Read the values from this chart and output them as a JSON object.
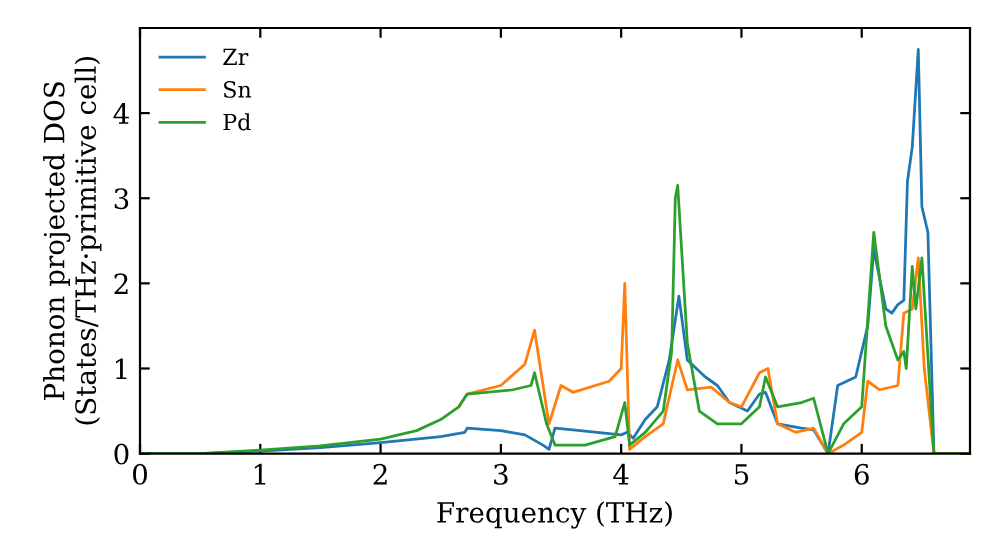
{
  "chart_data": {
    "type": "line",
    "xlabel": "Frequency (THz)",
    "ylabel": "Phonon projected DOS\n(States/THz·primitive cell)",
    "xlim": [
      0,
      6.9
    ],
    "ylim": [
      0,
      5
    ],
    "xticks": [
      0,
      1,
      2,
      3,
      4,
      5,
      6
    ],
    "yticks": [
      0,
      1,
      2,
      3,
      4
    ],
    "grid": false,
    "legend": "top left",
    "marker": "none",
    "line_style": "solid",
    "series": [
      {
        "name": "Zr",
        "color": "#1f77b4",
        "x": [
          0,
          0.5,
          1.0,
          1.5,
          2.0,
          2.5,
          2.7,
          2.72,
          3.0,
          3.2,
          3.35,
          3.4,
          3.45,
          3.6,
          4.0,
          4.05,
          4.1,
          4.2,
          4.3,
          4.4,
          4.48,
          4.55,
          4.7,
          4.8,
          4.9,
          5.05,
          5.15,
          5.2,
          5.3,
          5.5,
          5.6,
          5.72,
          5.8,
          5.95,
          6.05,
          6.1,
          6.2,
          6.25,
          6.3,
          6.35,
          6.38,
          6.42,
          6.47,
          6.5,
          6.55,
          6.6,
          6.9
        ],
        "values": [
          0,
          0,
          0.03,
          0.07,
          0.13,
          0.2,
          0.25,
          0.3,
          0.27,
          0.22,
          0.1,
          0.05,
          0.3,
          0.28,
          0.22,
          0.25,
          0.18,
          0.4,
          0.55,
          1.1,
          1.85,
          1.1,
          0.9,
          0.8,
          0.6,
          0.5,
          0.7,
          0.72,
          0.35,
          0.3,
          0.28,
          0,
          0.8,
          0.9,
          1.5,
          2.4,
          1.7,
          1.65,
          1.75,
          1.8,
          3.2,
          3.6,
          4.75,
          2.9,
          2.6,
          0,
          0
        ]
      },
      {
        "name": "Sn",
        "color": "#ff7f0e",
        "x": [
          2.65,
          2.72,
          3.0,
          3.2,
          3.28,
          3.4,
          3.5,
          3.6,
          3.9,
          4.0,
          4.03,
          4.07,
          4.2,
          4.35,
          4.47,
          4.55,
          4.75,
          4.9,
          5.0,
          5.15,
          5.22,
          5.3,
          5.45,
          5.6,
          5.72,
          5.85,
          6.0,
          6.05,
          6.15,
          6.3,
          6.35,
          6.42,
          6.47,
          6.52,
          6.6,
          6.9
        ],
        "values": [
          0.55,
          0.7,
          0.8,
          1.05,
          1.45,
          0.35,
          0.8,
          0.72,
          0.85,
          1.0,
          2.0,
          0.05,
          0.2,
          0.35,
          1.1,
          0.75,
          0.78,
          0.6,
          0.55,
          0.95,
          1.0,
          0.35,
          0.25,
          0.3,
          0,
          0.1,
          0.25,
          0.85,
          0.75,
          0.8,
          1.65,
          1.7,
          2.3,
          1.0,
          0,
          0
        ]
      },
      {
        "name": "Pd",
        "color": "#2ca02c",
        "x": [
          0,
          0.5,
          1.0,
          1.5,
          2.0,
          2.3,
          2.5,
          2.65,
          2.72,
          3.1,
          3.25,
          3.28,
          3.38,
          3.45,
          3.7,
          3.95,
          4.03,
          4.07,
          4.2,
          4.35,
          4.42,
          4.45,
          4.47,
          4.55,
          4.65,
          4.8,
          5.0,
          5.15,
          5.2,
          5.3,
          5.5,
          5.6,
          5.72,
          5.85,
          6.0,
          6.1,
          6.2,
          6.3,
          6.35,
          6.37,
          6.42,
          6.45,
          6.5,
          6.6,
          6.9
        ],
        "values": [
          0,
          0,
          0.04,
          0.09,
          0.17,
          0.27,
          0.4,
          0.55,
          0.7,
          0.75,
          0.8,
          0.95,
          0.35,
          0.1,
          0.1,
          0.2,
          0.6,
          0.1,
          0.25,
          0.5,
          1.2,
          3.0,
          3.15,
          1.3,
          0.5,
          0.35,
          0.35,
          0.55,
          0.9,
          0.55,
          0.6,
          0.65,
          0,
          0.35,
          0.55,
          2.6,
          1.5,
          1.1,
          1.2,
          1.0,
          2.2,
          1.7,
          2.3,
          0,
          0
        ]
      }
    ]
  }
}
